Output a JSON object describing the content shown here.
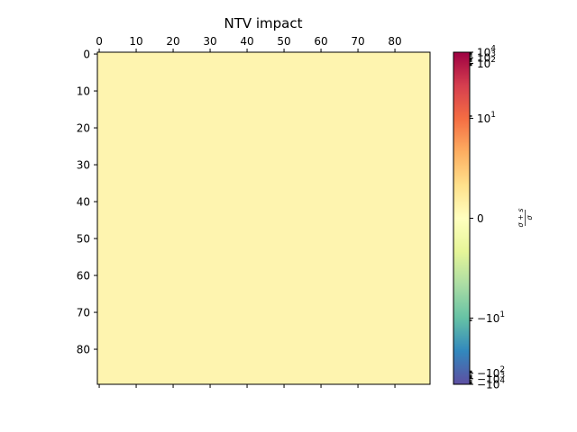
{
  "chart_data": {
    "type": "heatmap",
    "title": "NTV impact",
    "xlabel": "",
    "ylabel": "",
    "rows": 90,
    "cols": 90,
    "fill_value": 0,
    "fill_color": "#fef4af",
    "x_ticks": [
      "0",
      "10",
      "20",
      "30",
      "40",
      "50",
      "60",
      "70",
      "80"
    ],
    "y_ticks": [
      "0",
      "10",
      "20",
      "30",
      "40",
      "50",
      "60",
      "70",
      "80"
    ],
    "xlim": [
      -0.5,
      89.5
    ],
    "ylim": [
      89.5,
      -0.5
    ],
    "colorbar": {
      "label": "σ + s / σ",
      "label_num": "σ + s",
      "label_den": "σ",
      "scale": "symlog",
      "ticks": [
        {
          "value": 10000,
          "base": "10",
          "exp": "4",
          "sign": ""
        },
        {
          "value": 1000,
          "base": "10",
          "exp": "3",
          "sign": ""
        },
        {
          "value": 100,
          "base": "10",
          "exp": "2",
          "sign": ""
        },
        {
          "value": 10,
          "base": "10",
          "exp": "1",
          "sign": ""
        },
        {
          "value": 0,
          "base": "0",
          "exp": "",
          "sign": ""
        },
        {
          "value": -10,
          "base": "10",
          "exp": "1",
          "sign": "−"
        },
        {
          "value": -100,
          "base": "10",
          "exp": "2",
          "sign": "−"
        },
        {
          "value": -1000,
          "base": "10",
          "exp": "3",
          "sign": "−"
        },
        {
          "value": -10000,
          "base": "10",
          "exp": "4",
          "sign": "−"
        }
      ],
      "colormap": "Spectral_r",
      "colors": [
        "#5e4fa2",
        "#3288bd",
        "#66c2a5",
        "#abdda4",
        "#e6f598",
        "#ffffbf",
        "#fee08b",
        "#fdae61",
        "#f46d43",
        "#d53e4f",
        "#9e0142"
      ]
    }
  }
}
